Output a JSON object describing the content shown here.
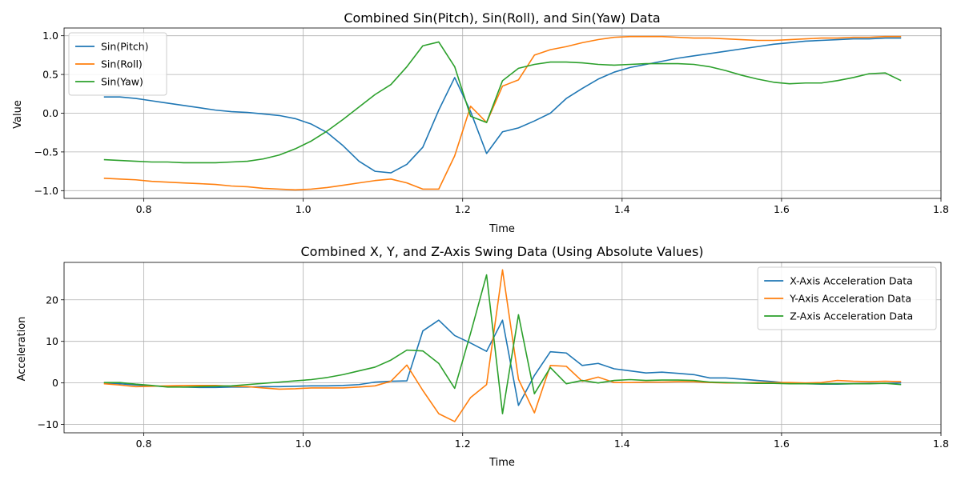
{
  "chart_data": [
    {
      "type": "line",
      "title": "Combined Sin(Pitch), Sin(Roll), and Sin(Yaw) Data",
      "xlabel": "Time",
      "ylabel": "Value",
      "xlim": [
        0.7,
        1.8
      ],
      "ylim": [
        -1.1,
        1.1
      ],
      "xticks": [
        0.8,
        1.0,
        1.2,
        1.4,
        1.6,
        1.8
      ],
      "xtick_labels": [
        "0.8",
        "1.0",
        "1.2",
        "1.4",
        "1.6",
        "1.8"
      ],
      "yticks": [
        -1.0,
        -0.5,
        0.0,
        0.5,
        1.0
      ],
      "ytick_labels": [
        "−1.0",
        "−0.5",
        "0.0",
        "0.5",
        "1.0"
      ],
      "grid": true,
      "legend_position": "upper-left",
      "x": [
        0.75,
        0.77,
        0.79,
        0.81,
        0.83,
        0.85,
        0.87,
        0.89,
        0.91,
        0.93,
        0.95,
        0.97,
        0.99,
        1.01,
        1.03,
        1.05,
        1.07,
        1.09,
        1.11,
        1.13,
        1.15,
        1.17,
        1.19,
        1.21,
        1.23,
        1.25,
        1.27,
        1.29,
        1.31,
        1.33,
        1.35,
        1.37,
        1.39,
        1.41,
        1.43,
        1.45,
        1.47,
        1.49,
        1.51,
        1.53,
        1.55,
        1.57,
        1.59,
        1.61,
        1.63,
        1.65,
        1.67,
        1.69,
        1.71,
        1.73,
        1.75
      ],
      "series": [
        {
          "name": "Sin(Pitch)",
          "color": "#1f77b4",
          "values": [
            0.21,
            0.21,
            0.19,
            0.16,
            0.13,
            0.1,
            0.07,
            0.04,
            0.02,
            0.01,
            -0.01,
            -0.03,
            -0.07,
            -0.14,
            -0.25,
            -0.42,
            -0.62,
            -0.75,
            -0.77,
            -0.66,
            -0.44,
            0.04,
            0.46,
            0.02,
            -0.52,
            -0.24,
            -0.19,
            -0.1,
            0.0,
            0.19,
            0.32,
            0.44,
            0.53,
            0.59,
            0.63,
            0.67,
            0.71,
            0.74,
            0.77,
            0.8,
            0.83,
            0.86,
            0.89,
            0.91,
            0.93,
            0.94,
            0.95,
            0.96,
            0.96,
            0.97,
            0.97
          ]
        },
        {
          "name": "Sin(Roll)",
          "color": "#ff7f0e",
          "values": [
            -0.84,
            -0.85,
            -0.86,
            -0.88,
            -0.89,
            -0.9,
            -0.91,
            -0.92,
            -0.94,
            -0.95,
            -0.97,
            -0.98,
            -0.99,
            -0.98,
            -0.96,
            -0.93,
            -0.9,
            -0.87,
            -0.85,
            -0.9,
            -0.98,
            -0.98,
            -0.55,
            0.09,
            -0.12,
            0.35,
            0.43,
            0.75,
            0.82,
            0.86,
            0.91,
            0.95,
            0.98,
            0.99,
            0.99,
            0.99,
            0.98,
            0.97,
            0.97,
            0.96,
            0.95,
            0.94,
            0.94,
            0.95,
            0.96,
            0.97,
            0.97,
            0.98,
            0.98,
            0.99,
            0.99
          ]
        },
        {
          "name": "Sin(Yaw)",
          "color": "#2ca02c",
          "values": [
            -0.6,
            -0.61,
            -0.62,
            -0.63,
            -0.63,
            -0.64,
            -0.64,
            -0.64,
            -0.63,
            -0.62,
            -0.59,
            -0.54,
            -0.46,
            -0.36,
            -0.23,
            -0.08,
            0.08,
            0.24,
            0.37,
            0.6,
            0.87,
            0.92,
            0.6,
            -0.04,
            -0.12,
            0.42,
            0.58,
            0.63,
            0.66,
            0.66,
            0.65,
            0.63,
            0.62,
            0.63,
            0.64,
            0.64,
            0.64,
            0.63,
            0.6,
            0.55,
            0.49,
            0.44,
            0.4,
            0.38,
            0.39,
            0.39,
            0.42,
            0.46,
            0.51,
            0.52,
            0.42
          ]
        }
      ]
    },
    {
      "type": "line",
      "title": "Combined X, Y, and Z-Axis Swing Data (Using Absolute Values)",
      "xlabel": "Time",
      "ylabel": "Acceleration",
      "xlim": [
        0.7,
        1.8
      ],
      "ylim": [
        -12,
        29
      ],
      "xticks": [
        0.8,
        1.0,
        1.2,
        1.4,
        1.6,
        1.8
      ],
      "xtick_labels": [
        "0.8",
        "1.0",
        "1.2",
        "1.4",
        "1.6",
        "1.8"
      ],
      "yticks": [
        -10,
        0,
        10,
        20
      ],
      "ytick_labels": [
        "−10",
        "0",
        "10",
        "20"
      ],
      "grid": true,
      "legend_position": "upper-right",
      "x": [
        0.75,
        0.77,
        0.79,
        0.81,
        0.83,
        0.85,
        0.87,
        0.89,
        0.91,
        0.93,
        0.95,
        0.97,
        0.99,
        1.01,
        1.03,
        1.05,
        1.07,
        1.09,
        1.11,
        1.13,
        1.15,
        1.17,
        1.19,
        1.21,
        1.23,
        1.25,
        1.27,
        1.29,
        1.31,
        1.33,
        1.35,
        1.37,
        1.39,
        1.41,
        1.43,
        1.45,
        1.47,
        1.49,
        1.51,
        1.53,
        1.55,
        1.57,
        1.59,
        1.61,
        1.63,
        1.65,
        1.67,
        1.69,
        1.71,
        1.73,
        1.75
      ],
      "series": [
        {
          "name": "X-Axis Acceleration Data",
          "color": "#1f77b4",
          "values": [
            0.0,
            -0.2,
            -0.5,
            -0.7,
            -0.9,
            -1.0,
            -1.1,
            -1.1,
            -1.0,
            -1.0,
            -0.9,
            -0.9,
            -0.8,
            -0.7,
            -0.7,
            -0.6,
            -0.4,
            0.2,
            0.4,
            0.5,
            12.5,
            15.1,
            11.4,
            9.6,
            7.6,
            15.1,
            -5.4,
            1.8,
            7.5,
            7.2,
            4.2,
            4.7,
            3.4,
            2.9,
            2.4,
            2.6,
            2.3,
            2.0,
            1.2,
            1.2,
            0.9,
            0.6,
            0.3,
            -0.1,
            -0.2,
            -0.3,
            -0.3,
            -0.2,
            -0.1,
            -0.1,
            0.0
          ]
        },
        {
          "name": "Y-Axis Acceleration Data",
          "color": "#ff7f0e",
          "values": [
            -0.2,
            -0.5,
            -0.9,
            -0.8,
            -0.7,
            -0.6,
            -0.6,
            -0.6,
            -0.8,
            -0.9,
            -1.2,
            -1.5,
            -1.4,
            -1.2,
            -1.2,
            -1.2,
            -1.0,
            -0.7,
            0.4,
            4.3,
            -1.8,
            -7.4,
            -9.3,
            -3.5,
            -0.4,
            27.2,
            0.9,
            -7.2,
            4.2,
            4.0,
            0.4,
            1.4,
            0.1,
            0.1,
            0.2,
            0.2,
            0.3,
            0.3,
            0.1,
            0.0,
            0.0,
            0.1,
            0.1,
            0.1,
            0.0,
            0.1,
            0.6,
            0.4,
            0.3,
            0.4,
            0.3
          ]
        },
        {
          "name": "Z-Axis Acceleration Data",
          "color": "#2ca02c",
          "values": [
            0.1,
            0.1,
            -0.3,
            -0.6,
            -1.0,
            -1.0,
            -0.9,
            -0.8,
            -0.7,
            -0.4,
            -0.1,
            0.2,
            0.5,
            0.8,
            1.3,
            2.0,
            2.9,
            3.8,
            5.5,
            7.9,
            7.7,
            4.7,
            -1.3,
            12.0,
            26.0,
            -7.4,
            16.4,
            -2.6,
            3.7,
            -0.2,
            0.6,
            0.0,
            0.6,
            0.8,
            0.6,
            0.7,
            0.7,
            0.6,
            0.2,
            0.1,
            0.0,
            -0.1,
            -0.1,
            -0.2,
            -0.2,
            -0.2,
            -0.2,
            -0.2,
            -0.2,
            -0.1,
            -0.4
          ]
        }
      ]
    }
  ]
}
